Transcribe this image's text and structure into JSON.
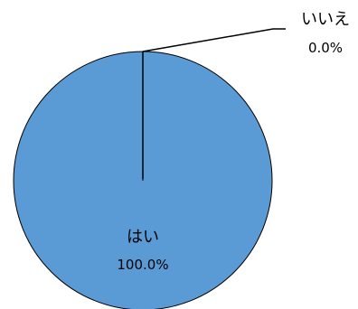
{
  "chart_data": {
    "type": "pie",
    "title": "",
    "slices": [
      {
        "label": "はい",
        "value": 100.0,
        "display": "100.0%",
        "color": "#5B9BD5"
      },
      {
        "label": "いいえ",
        "value": 0.0,
        "display": "0.0%",
        "color": "#ED7D31"
      }
    ],
    "legend": "none",
    "border_color": "#000000"
  }
}
